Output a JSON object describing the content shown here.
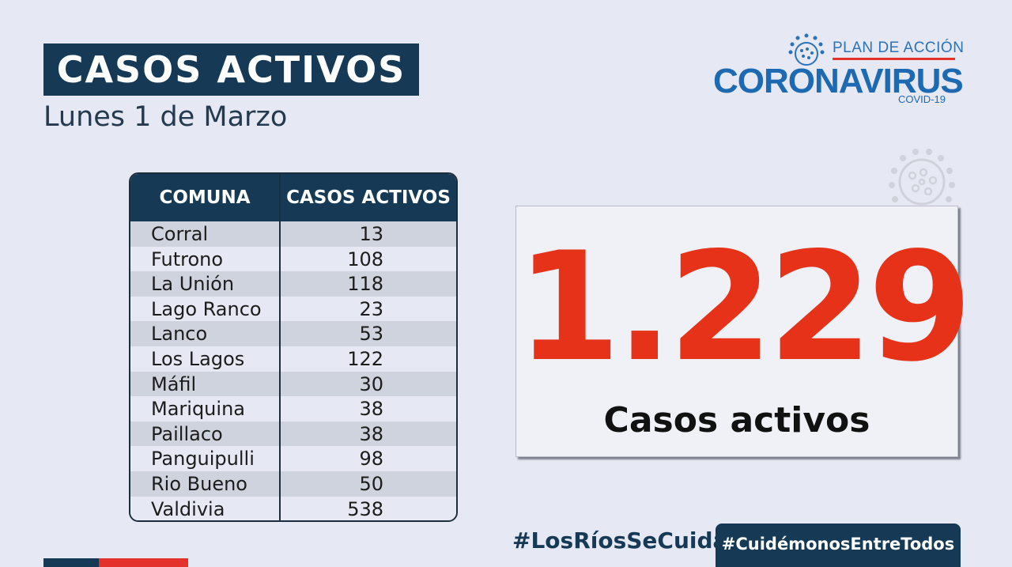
{
  "header": {
    "title": "CASOS ACTIVOS",
    "date": "Lunes 1 de Marzo"
  },
  "logo": {
    "plan": "PLAN DE ACCIÓN",
    "name": "CORONAVIRUS",
    "sub": "COVID-19"
  },
  "table": {
    "headers": [
      "COMUNA",
      "CASOS ACTIVOS"
    ],
    "rows": [
      {
        "comuna": "Corral",
        "casos": "13"
      },
      {
        "comuna": "Futrono",
        "casos": "108"
      },
      {
        "comuna": "La Unión",
        "casos": "118"
      },
      {
        "comuna": "Lago Ranco",
        "casos": "23"
      },
      {
        "comuna": "Lanco",
        "casos": "53"
      },
      {
        "comuna": "Los Lagos",
        "casos": "122"
      },
      {
        "comuna": "Máfil",
        "casos": "30"
      },
      {
        "comuna": "Mariquina",
        "casos": "38"
      },
      {
        "comuna": "Paillaco",
        "casos": "38"
      },
      {
        "comuna": "Panguipulli",
        "casos": "98"
      },
      {
        "comuna": "Rio Bueno",
        "casos": "50"
      },
      {
        "comuna": "Valdivia",
        "casos": "538"
      }
    ]
  },
  "total": {
    "value": "1.229",
    "label": "Casos activos"
  },
  "footer": {
    "hashtag_left": "#LosRíosSeCuida",
    "hashtag_right": "#CuidémonosEntreTodos"
  },
  "colors": {
    "navy": "#163a55",
    "red": "#e63219",
    "blue": "#1e6ab2",
    "background": "#e6e8f3"
  }
}
